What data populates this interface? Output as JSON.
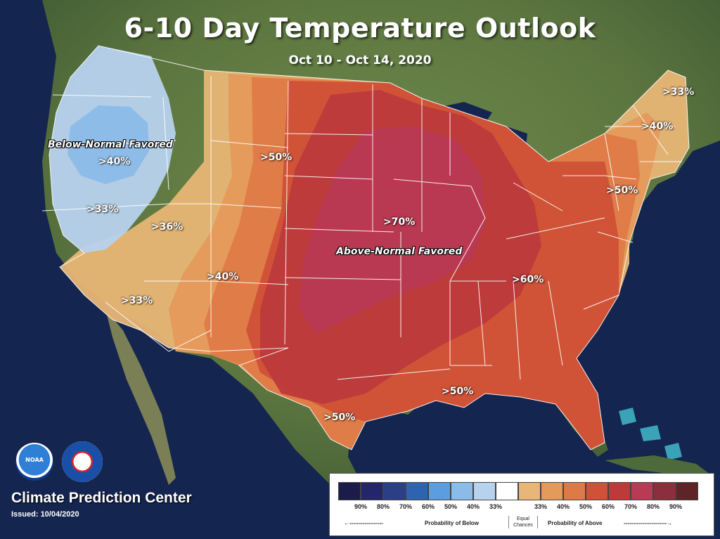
{
  "title": "6-10 Day Temperature Outlook",
  "dates": "Oct 10 - Oct 14, 2020",
  "center": "Climate Prediction Center",
  "issued": "Issued: 10/04/2020",
  "logos": {
    "noaa": "NOAA",
    "nws": "National Weather Service"
  },
  "labels": {
    "below_favored": "Below-Normal Favored",
    "above_favored": "Above-Normal Favored",
    "l40_below": ">40%",
    "l33_west": ">33%",
    "l36_nv": ">36%",
    "l33_sw": ">33%",
    "l40_mid": ">40%",
    "l50_north": ">50%",
    "l70": ">70%",
    "l60": ">60%",
    "l50_east": ">50%",
    "l40_ne": ">40%",
    "l33_me": ">33%",
    "l50_tx": ">50%",
    "l50_gulf": ">50%"
  },
  "legend": {
    "swatches": [
      {
        "value": "90%",
        "color": "#1c1c4a"
      },
      {
        "value": "80%",
        "color": "#23266a"
      },
      {
        "value": "70%",
        "color": "#2b3f86"
      },
      {
        "value": "60%",
        "color": "#2d64b0"
      },
      {
        "value": "50%",
        "color": "#5a9ee0"
      },
      {
        "value": "40%",
        "color": "#8bbbe8"
      },
      {
        "value": "33%",
        "color": "#b7d2ee"
      },
      {
        "value": "",
        "color": "#ffffff"
      },
      {
        "value": "33%",
        "color": "#e8b676"
      },
      {
        "value": "40%",
        "color": "#e49a5a"
      },
      {
        "value": "50%",
        "color": "#de7a48"
      },
      {
        "value": "60%",
        "color": "#cf5138"
      },
      {
        "value": "70%",
        "color": "#bc3a3a"
      },
      {
        "value": "80%",
        "color": "#b83a55"
      },
      {
        "value": "90%",
        "color": "#8a2f3b"
      },
      {
        "value": "",
        "color": "#5e2428"
      }
    ],
    "below_label": "Probability of Below",
    "equal_chances": "Equal Chances",
    "above_label": "Probability of Above"
  },
  "colors": {
    "ocean": "#14254f",
    "land": "#6b7f47"
  }
}
